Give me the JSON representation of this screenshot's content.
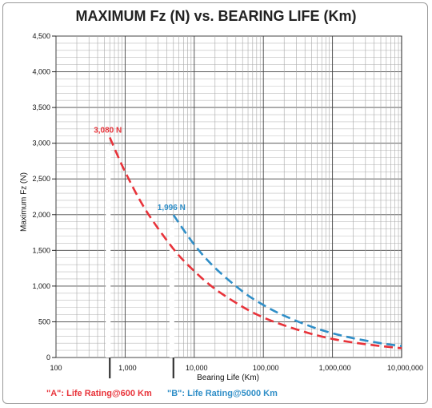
{
  "chart_data": {
    "type": "line",
    "title": "MAXIMUM Fz (N) vs. BEARING LIFE (Km)",
    "xlabel": "Bearing Life (Km)",
    "ylabel": "Maximum Fz (N)",
    "xscale": "log",
    "xlim": [
      100,
      10000000
    ],
    "ylim": [
      0,
      4500
    ],
    "x_ticks": [
      100,
      1000,
      10000,
      100000,
      1000000,
      10000000
    ],
    "x_tick_labels": [
      "100",
      "1,000",
      "10,000",
      "100,000",
      "1,000,000",
      "10,000,000"
    ],
    "y_ticks": [
      0,
      500,
      1000,
      1500,
      2000,
      2500,
      3000,
      3500,
      4000,
      4500
    ],
    "y_tick_labels": [
      "0",
      "500",
      "1,000",
      "1,500",
      "2,000",
      "2,500",
      "3,000",
      "3,500",
      "4,000",
      "4,500"
    ],
    "grid": true,
    "series": [
      {
        "name": "\"A\": Life Rating@600 Km",
        "color": "#e8333a",
        "line_style": "dashed",
        "x": [
          600,
          1000,
          2000,
          5000,
          10000,
          20000,
          50000,
          100000,
          200000,
          500000,
          1000000,
          2000000,
          5000000,
          10000000
        ],
        "y": [
          3080,
          2600,
          2060,
          1520,
          1210,
          960,
          710,
          560,
          450,
          330,
          260,
          210,
          160,
          130
        ]
      },
      {
        "name": "\"B\": Life Rating@5000 Km",
        "color": "#2f8ec7",
        "line_style": "dashed",
        "x": [
          5000,
          10000,
          20000,
          50000,
          100000,
          200000,
          500000,
          1000000,
          2000000,
          5000000,
          10000000
        ],
        "y": [
          1996,
          1580,
          1255,
          925,
          735,
          585,
          430,
          340,
          270,
          200,
          160
        ]
      }
    ],
    "markers": [
      {
        "x": 600,
        "color": "#333333"
      },
      {
        "x": 5000,
        "color": "#333333"
      }
    ],
    "annotations": [
      {
        "text": "3,080 N",
        "x": 600,
        "y": 3080,
        "color": "#e8333a"
      },
      {
        "text": "1,996 N",
        "x": 5000,
        "y": 1996,
        "color": "#2f8ec7"
      }
    ]
  },
  "legend": {
    "a_label": "\"A\": Life Rating@600 Km",
    "b_label": "\"B\": Life Rating@5000 Km"
  }
}
